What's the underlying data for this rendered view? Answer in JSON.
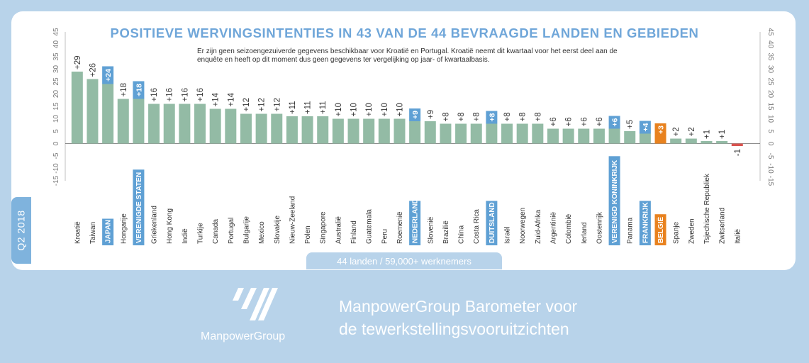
{
  "chart_data": {
    "type": "bar",
    "title": "POSITIEVE WERVINGSINTENTIES IN 43 VAN DE 44 BEVRAAGDE LANDEN EN GEBIEDEN",
    "subtitle": "Er zijn geen seizoengezuiverde gegevens beschikbaar voor Kroatië en Portugal. Kroatië neemt dit kwartaal voor het eerst deel aan de enquête en heeft op dit moment dus geen gegevens ter vergelijking op jaar- of kwartaalbasis.",
    "ylim": [
      -15,
      45
    ],
    "yticks": [
      45,
      40,
      35,
      30,
      25,
      20,
      15,
      10,
      5,
      0,
      -5,
      -10,
      -15
    ],
    "grid": false,
    "categories": [
      "Kroatië",
      "Taiwan",
      "JAPAN",
      "Hongarije",
      "VERENIGDE STATEN",
      "Griekenland",
      "Hong Kong",
      "Indië",
      "Turkije",
      "Canada",
      "Portugal",
      "Bulgarije",
      "Mexico",
      "Slovakije",
      "Nieuw-Zeeland",
      "Polen",
      "Singapore",
      "Australië",
      "Finland",
      "Guatemala",
      "Peru",
      "Roemenië",
      "NEDERLAND",
      "Slovenië",
      "Brazilië",
      "China",
      "Costa Rica",
      "DUITSLAND",
      "Israël",
      "Noorwegen",
      "Zuid-Afrika",
      "Argentinië",
      "Colombië",
      "Ierland",
      "Oostenrijk",
      "VERENIGD KONINKRIJK",
      "Panama",
      "FRANKRIJK",
      "BELGIË",
      "Spanje",
      "Zweden",
      "Tsjechische Republiek",
      "Zwitserland",
      "Italië"
    ],
    "values": [
      29,
      26,
      24,
      18,
      18,
      16,
      16,
      16,
      16,
      14,
      14,
      12,
      12,
      12,
      11,
      11,
      11,
      10,
      10,
      10,
      10,
      10,
      9,
      9,
      8,
      8,
      8,
      8,
      8,
      8,
      8,
      6,
      6,
      6,
      6,
      6,
      5,
      4,
      3,
      2,
      2,
      1,
      1,
      -1
    ],
    "value_labels": [
      "+29",
      "+26",
      "+24",
      "+18",
      "+18",
      "+16",
      "+16",
      "+16",
      "+16",
      "+14",
      "+14",
      "+12",
      "+12",
      "+12",
      "+11",
      "+11",
      "+11",
      "+10",
      "+10",
      "+10",
      "+10",
      "+10",
      "+9",
      "+9",
      "+8",
      "+8",
      "+8",
      "+8",
      "+8",
      "+8",
      "+8",
      "+6",
      "+6",
      "+6",
      "+6",
      "+6",
      "+5",
      "+4",
      "+3",
      "+2",
      "+2",
      "+1",
      "+1",
      "-1"
    ],
    "highlights": {
      "2": "blue",
      "4": "blue",
      "22": "blue",
      "27": "blue",
      "35": "blue",
      "37": "blue",
      "38": "orange",
      "43": "red"
    },
    "colors": {
      "bar": "#93bba5",
      "blue": "#5fa0d4",
      "orange": "#e8821f",
      "red": "#d9534f",
      "title": "#6fa6d9",
      "axis_text": "#777777"
    }
  },
  "quarter_label": "Q2 2018",
  "sample_label": "44 landen / 59,000+ werknemers",
  "brand_name": "ManpowerGroup",
  "barometer_title_line1": "ManpowerGroup Barometer voor",
  "barometer_title_line2": "de tewerkstellingsvooruitzichten"
}
